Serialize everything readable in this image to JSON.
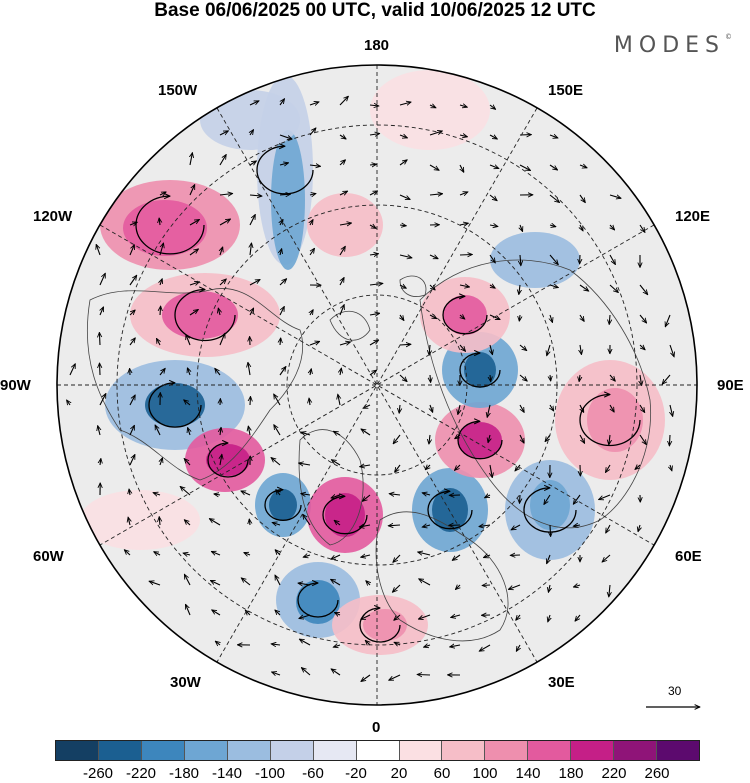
{
  "title": "Base 06/06/2025 00 UTC, valid 10/06/2025 12 UTC",
  "brand": "MODES",
  "brand_mark": "©",
  "longitude_labels": {
    "lon_180": "180",
    "lon_150w": "150W",
    "lon_150e": "150E",
    "lon_120w": "120W",
    "lon_120e": "120E",
    "lon_90w": "90W",
    "lon_90e": "90E",
    "lon_60w": "60W",
    "lon_60e": "60E",
    "lon_30w": "30W",
    "lon_30e": "30E",
    "lon_0": "0"
  },
  "vector_reference": {
    "value": "30"
  },
  "colorbar": {
    "ticks": [
      "-260",
      "-220",
      "-180",
      "-140",
      "-100",
      "-60",
      "-20",
      "20",
      "60",
      "100",
      "140",
      "180",
      "220",
      "260"
    ],
    "colors": [
      "#143f63",
      "#1b5f91",
      "#3d86bd",
      "#6ea6d3",
      "#9bbde0",
      "#c4d0e8",
      "#e6e8f3",
      "#ffffff",
      "#fbe0e3",
      "#f6bec8",
      "#ee8fae",
      "#e35a9e",
      "#c51f87",
      "#8f1478",
      "#5c0a6e"
    ]
  },
  "palette": {
    "land": "#ececec",
    "coast": "#444444",
    "grid": "#222222"
  }
}
